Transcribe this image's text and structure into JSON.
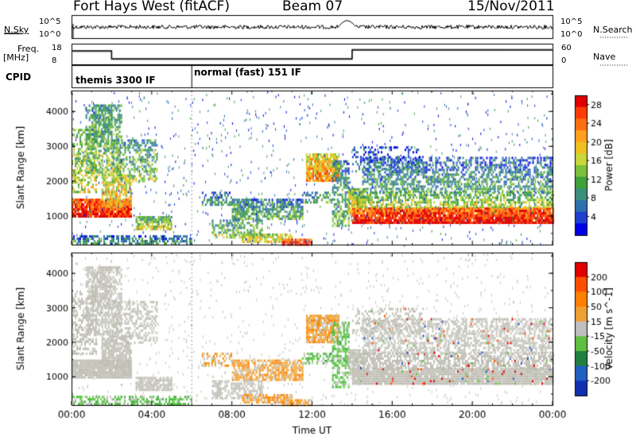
{
  "header": {
    "title": "Fort Hays West (fitACF)",
    "beam": "Beam 07",
    "date": "15/Nov/2011"
  },
  "top_panels": {
    "nsky_label": "N.Sky",
    "nsky_ticks": [
      "10^5",
      "10^0"
    ],
    "nsearch_label": "N.Search",
    "nsearch_ticks": [
      "10^5",
      "10^0"
    ],
    "freq_label": "Freq.",
    "freq_unit": "[MHz]",
    "freq_ticks": [
      "18",
      "8"
    ],
    "nave_label": "Nave",
    "nave_ticks": [
      "60",
      "0"
    ],
    "cpid_label": "CPID",
    "modes": [
      {
        "label": "themis 3300 IF",
        "start_hour": 0,
        "end_hour": 6
      },
      {
        "label": "normal (fast) 151 IF",
        "start_hour": 6,
        "end_hour": 24
      }
    ]
  },
  "chart_data": [
    {
      "type": "heatmap",
      "quantity": "Power",
      "ylabel": "Slant Range [km]",
      "xlabel": "Time UT",
      "x_ticks": [
        "00:00",
        "04:00",
        "08:00",
        "12:00",
        "16:00",
        "20:00",
        "00:00"
      ],
      "y_ticks": [
        1000,
        2000,
        3000,
        4000
      ],
      "xlim_hours": [
        0,
        24
      ],
      "ylim_km": [
        180,
        4600
      ],
      "colorbar": {
        "label": "Power [dB]",
        "ticks": [
          4,
          8,
          12,
          16,
          20,
          24,
          28
        ],
        "range": [
          0,
          30
        ],
        "colors": [
          "#0000e8",
          "#1f3fd0",
          "#2e6fb0",
          "#3c8f7a",
          "#3fa03c",
          "#7cc03c",
          "#c8d83a",
          "#f0c020",
          "#ffa020",
          "#ff7010",
          "#ff3c08",
          "#e00000"
        ]
      }
    },
    {
      "type": "heatmap",
      "quantity": "Velocity",
      "ylabel": "Slant Range [km]",
      "xlabel": "Time UT",
      "x_ticks": [
        "00:00",
        "04:00",
        "08:00",
        "12:00",
        "16:00",
        "20:00",
        "00:00"
      ],
      "y_ticks": [
        1000,
        2000,
        3000,
        4000
      ],
      "xlim_hours": [
        0,
        24
      ],
      "ylim_km": [
        180,
        4600
      ],
      "colorbar": {
        "label": "Velocity [m s^-1]",
        "ticks": [
          200,
          100,
          50,
          15,
          -15,
          -50,
          -100,
          -200
        ],
        "colors": [
          "#1030b0",
          "#2060c0",
          "#208040",
          "#60c040",
          "#c0c0c0",
          "#f0a030",
          "#ff8000",
          "#ff5000",
          "#e00000"
        ]
      }
    }
  ]
}
